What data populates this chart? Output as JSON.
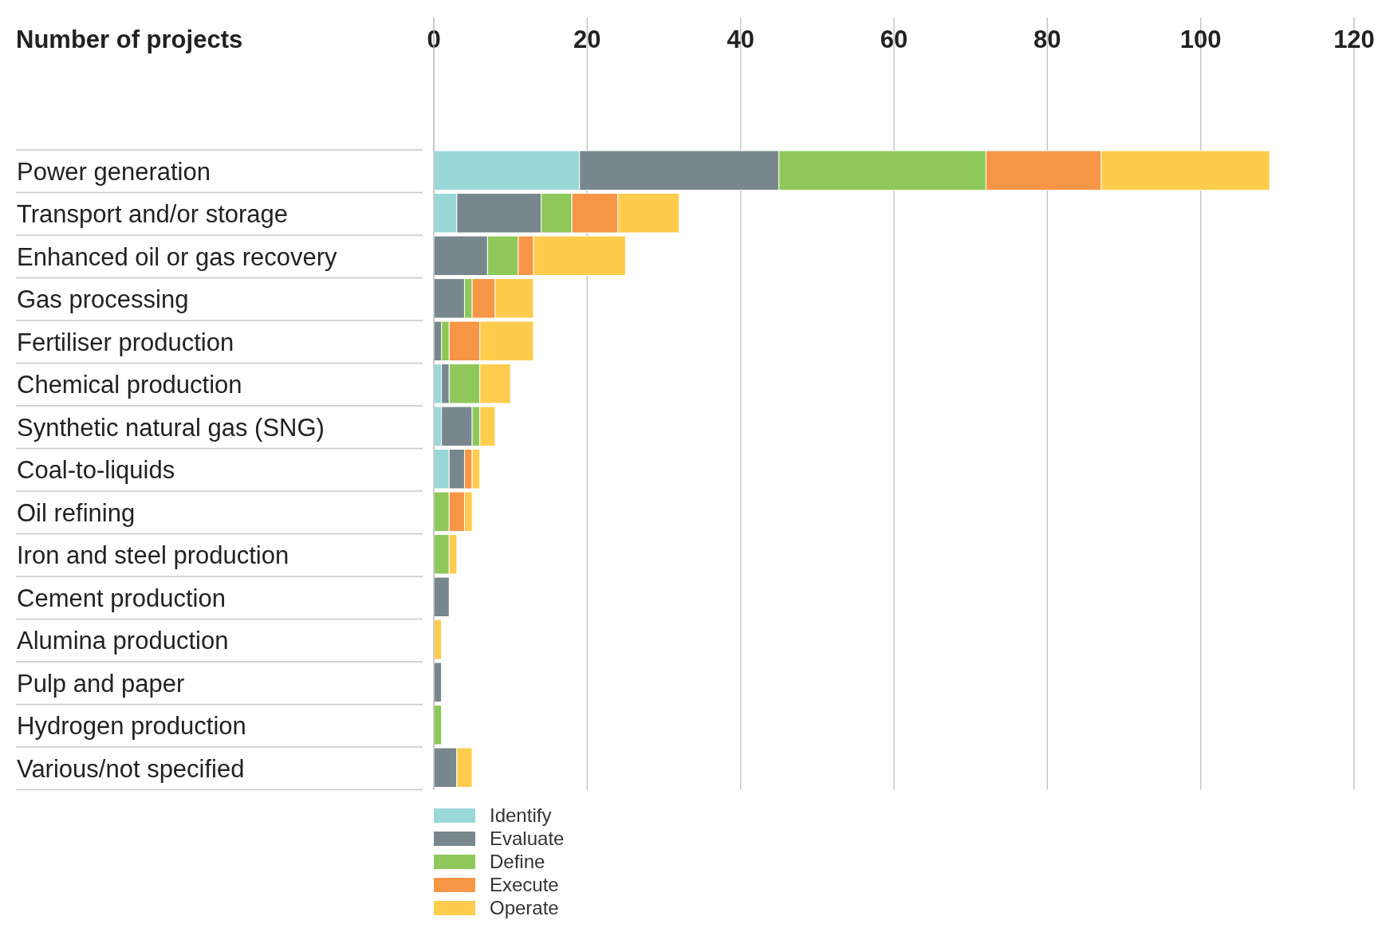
{
  "chart_data": {
    "type": "bar",
    "orientation": "horizontal",
    "stacked": true,
    "xlabel": "Number of projects",
    "categories": [
      "Power generation",
      "Transport and/or storage",
      "Enhanced oil or gas recovery",
      "Gas processing",
      "Fertiliser production",
      "Chemical production",
      "Synthetic natural gas (SNG)",
      "Coal-to-liquids",
      "Oil refining",
      "Iron and steel production",
      "Cement production",
      "Alumina production",
      "Pulp and paper",
      "Hydrogen production",
      "Various/not specified"
    ],
    "series": [
      {
        "name": "Identify",
        "color": "#9ad7d7",
        "values": [
          19,
          3,
          0,
          0,
          0,
          1,
          1,
          2,
          0,
          0,
          0,
          0,
          0,
          0,
          0
        ]
      },
      {
        "name": "Evaluate",
        "color": "#78878d",
        "values": [
          26,
          11,
          7,
          4,
          1,
          1,
          4,
          2,
          0,
          0,
          2,
          0,
          1,
          0,
          3
        ]
      },
      {
        "name": "Define",
        "color": "#8ec85a",
        "values": [
          27,
          4,
          4,
          1,
          1,
          4,
          1,
          0,
          2,
          2,
          0,
          0,
          0,
          1,
          0
        ]
      },
      {
        "name": "Execute",
        "color": "#f79646",
        "values": [
          15,
          6,
          2,
          3,
          4,
          0,
          0,
          1,
          2,
          0,
          0,
          0,
          0,
          0,
          0
        ]
      },
      {
        "name": "Operate",
        "color": "#ffcc4e",
        "values": [
          22,
          8,
          12,
          5,
          7,
          4,
          2,
          1,
          1,
          1,
          0,
          1,
          0,
          0,
          2
        ]
      }
    ],
    "xlim": [
      0,
      120
    ],
    "xticks": [
      0,
      20,
      40,
      60,
      80,
      100,
      120
    ],
    "grid": "x",
    "legend": "bottom"
  }
}
